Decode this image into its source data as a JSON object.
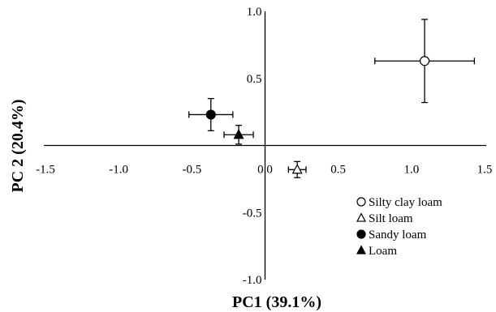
{
  "chart_data": {
    "type": "scatter",
    "xlabel": "PC1 (39.1%)",
    "ylabel": "PC 2 (20.4%)",
    "xlim": [
      -1.5,
      1.5
    ],
    "ylim": [
      -1.0,
      1.0
    ],
    "x_ticks": [
      -1.5,
      -1.0,
      -0.5,
      0.0,
      0.5,
      1.0,
      1.5
    ],
    "y_ticks": [
      -1.0,
      -0.5,
      0.0,
      0.5,
      1.0
    ],
    "x_tick_labels": [
      "-1.5",
      "-1.0",
      "-0.5",
      "0.0",
      "0.5",
      "1.0",
      "1.5"
    ],
    "y_tick_labels": [
      "-1.0",
      "-0.5",
      "0.0",
      "0.5",
      "1.0"
    ],
    "grid": false,
    "legend_position": "bottom-right",
    "error_bars": true,
    "series": [
      {
        "name": "Silty clay loam",
        "marker": "circle-open",
        "x": 1.09,
        "y": 0.63,
        "x_err": 0.34,
        "y_err": 0.31
      },
      {
        "name": "Silt loam",
        "marker": "triangle-open",
        "x": 0.22,
        "y": -0.18,
        "x_err": 0.06,
        "y_err": 0.06
      },
      {
        "name": "Sandy loam",
        "marker": "circle-filled",
        "x": -0.37,
        "y": 0.23,
        "x_err": 0.15,
        "y_err": 0.12
      },
      {
        "name": "Loam",
        "marker": "triangle-filled",
        "x": -0.18,
        "y": 0.08,
        "x_err": 0.1,
        "y_err": 0.07
      }
    ],
    "colors": {
      "axis": "#000000",
      "marker": "#000000",
      "background": "#ffffff"
    }
  }
}
